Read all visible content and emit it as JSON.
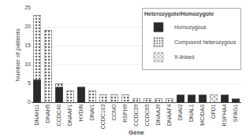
{
  "chart_data": {
    "type": "bar",
    "stacked": true,
    "categories": [
      "DNAH11",
      "DNAH5",
      "CCDC40",
      "DNAAF1",
      "HYDIN",
      "DNAI1",
      "CCDC103",
      "CCNO",
      "RSPH9",
      "CCDC39",
      "CCDC65",
      "DNAAJ9",
      "DNAAF4",
      "DNAI2",
      "DNAL1",
      "MCIDAS",
      "OFD1",
      "RSPHA4",
      "SPAG1"
    ],
    "series": [
      {
        "name": "Homozygous",
        "color": "#2a2a2a",
        "values": [
          6,
          0,
          4,
          0,
          4,
          0,
          0,
          0,
          0,
          0,
          0,
          0,
          0,
          2,
          2,
          2,
          0,
          2,
          1
        ]
      },
      {
        "name": "Compound heterozygous",
        "color": "#d0d0d0",
        "values": [
          17,
          19,
          1,
          3,
          0,
          3,
          2,
          2,
          2,
          1,
          1,
          1,
          1,
          0,
          0,
          0,
          0,
          0,
          0
        ]
      },
      {
        "name": "X-linked",
        "color": "#d0d0d0",
        "values": [
          0,
          0,
          0,
          0,
          0,
          0,
          0,
          0,
          0,
          0,
          0,
          0,
          0,
          0,
          0,
          0,
          2,
          0,
          0
        ]
      }
    ],
    "xlabel": "Gene",
    "ylabel": "Number of patients",
    "legend_title": "Heterozygote/Homozygote",
    "legend": "upper right",
    "ylim": [
      0,
      25
    ],
    "yticks": [
      0,
      5,
      10,
      15,
      20,
      25
    ],
    "grid": true
  }
}
